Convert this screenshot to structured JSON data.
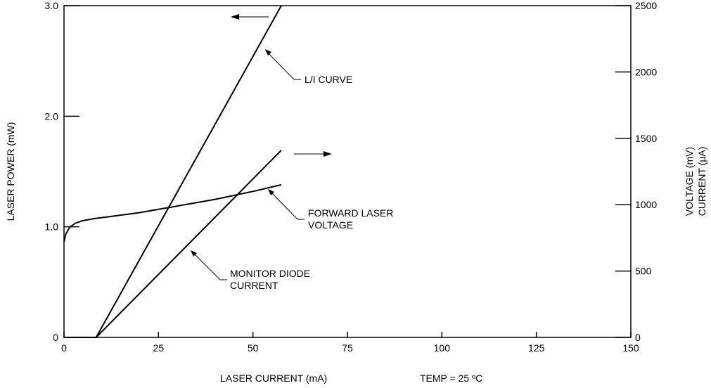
{
  "chart_data": {
    "type": "line",
    "xlabel": "LASER CURRENT (mA)",
    "ylabel_left": "LASER POWER (mW)",
    "ylabel_right_line1": "VOLTAGE (mV)",
    "ylabel_right_line2": "CURRENT (µA)",
    "note": "TEMP = 25 ºC",
    "xlim": [
      0,
      150
    ],
    "ylim_left": [
      0,
      3.0
    ],
    "ylim_right": [
      0,
      2500
    ],
    "x_ticks": [
      "0",
      "25",
      "50",
      "75",
      "100",
      "125",
      "150"
    ],
    "y_left_ticks": [
      "0",
      "1.0",
      "2.0",
      "3.0"
    ],
    "y_right_ticks": [
      "0",
      "500",
      "1000",
      "1500",
      "2000",
      "2500"
    ],
    "grid": false,
    "series": [
      {
        "name": "L/I CURVE",
        "axis": "left",
        "x": [
          0,
          8.5,
          57.5
        ],
        "y": [
          0,
          0,
          3.0
        ]
      },
      {
        "name": "FORWARD LASER VOLTAGE",
        "axis": "right",
        "x": [
          0,
          0.5,
          1.5,
          3,
          5,
          8,
          12,
          20,
          30,
          40,
          50,
          57.5
        ],
        "y": [
          720,
          780,
          830,
          860,
          880,
          895,
          910,
          940,
          990,
          1040,
          1100,
          1150
        ]
      },
      {
        "name": "MONITOR DIODE CURRENT",
        "axis": "right",
        "x": [
          0,
          8.5,
          57.5
        ],
        "y": [
          0,
          0,
          1410
        ]
      }
    ],
    "annotations": [
      {
        "label": "L/I CURVE"
      },
      {
        "label_line1": "FORWARD LASER",
        "label_line2": "VOLTAGE"
      },
      {
        "label_line1": "MONITOR DIODE",
        "label_line2": "CURRENT"
      }
    ]
  }
}
